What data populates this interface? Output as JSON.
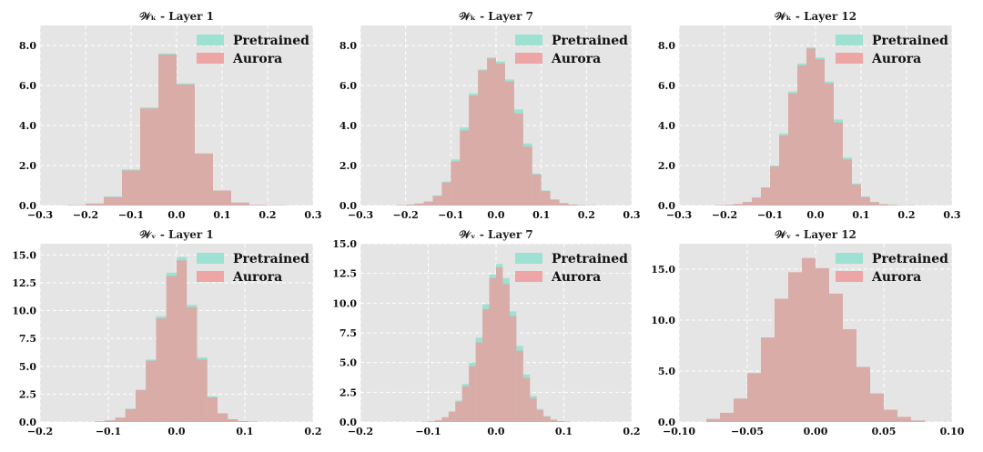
{
  "colors": {
    "pretrained": "#8fe0cf",
    "aurora": "#ee9a9a",
    "plot_bg": "#e5e5e5",
    "grid": "#ffffff"
  },
  "legend": {
    "placement": "top-right",
    "labels": [
      "Pretrained",
      "Aurora"
    ]
  },
  "chart_data": [
    {
      "type": "histogram",
      "title": "𝒲ₖ - Layer 1",
      "xlim": [
        -0.3,
        0.3
      ],
      "ylim": [
        0,
        9
      ],
      "xticks": [
        -0.3,
        -0.2,
        -0.1,
        0.0,
        0.1,
        0.2,
        0.3
      ],
      "xtick_labels": [
        "−0.3",
        "−0.2",
        "−0.1",
        "0.0",
        "0.1",
        "0.2",
        "0.3"
      ],
      "yticks": [
        0,
        2,
        4,
        6,
        8
      ],
      "ytick_labels": [
        "0.0",
        "2.0",
        "4.0",
        "6.0",
        "8.0"
      ],
      "bin_edges": [
        -0.24,
        -0.2,
        -0.16,
        -0.12,
        -0.08,
        -0.04,
        0.0,
        0.04,
        0.08,
        0.12,
        0.16,
        0.2,
        0.24
      ],
      "series": [
        {
          "name": "Pretrained",
          "values": [
            0.02,
            0.1,
            0.45,
            1.8,
            4.9,
            7.6,
            6.1,
            2.6,
            0.75,
            0.15,
            0.03,
            0.01
          ]
        },
        {
          "name": "Aurora",
          "values": [
            0.02,
            0.1,
            0.42,
            1.75,
            4.85,
            7.55,
            6.05,
            2.6,
            0.75,
            0.15,
            0.03,
            0.01
          ]
        }
      ]
    },
    {
      "type": "histogram",
      "title": "𝒲ₖ - Layer 7",
      "xlim": [
        -0.3,
        0.3
      ],
      "ylim": [
        0,
        9
      ],
      "xticks": [
        -0.3,
        -0.2,
        -0.1,
        0.0,
        0.1,
        0.2,
        0.3
      ],
      "xtick_labels": [
        "−0.3",
        "−0.2",
        "−0.1",
        "0.0",
        "0.1",
        "0.2",
        "0.3"
      ],
      "yticks": [
        0,
        2,
        4,
        6,
        8
      ],
      "ytick_labels": [
        "0.0",
        "2.0",
        "4.0",
        "6.0",
        "8.0"
      ],
      "bin_edges": [
        -0.22,
        -0.2,
        -0.18,
        -0.16,
        -0.14,
        -0.12,
        -0.1,
        -0.08,
        -0.06,
        -0.04,
        -0.02,
        0.0,
        0.02,
        0.04,
        0.06,
        0.08,
        0.1,
        0.12,
        0.14,
        0.16,
        0.18,
        0.2,
        0.22
      ],
      "series": [
        {
          "name": "Pretrained",
          "values": [
            0.02,
            0.05,
            0.1,
            0.2,
            0.5,
            1.2,
            2.3,
            3.9,
            5.6,
            6.8,
            7.4,
            7.2,
            6.3,
            4.8,
            3.1,
            1.6,
            0.75,
            0.3,
            0.12,
            0.05,
            0.02,
            0.01
          ]
        },
        {
          "name": "Aurora",
          "values": [
            0.02,
            0.05,
            0.1,
            0.2,
            0.48,
            1.15,
            2.2,
            3.75,
            5.5,
            6.75,
            7.35,
            7.1,
            6.2,
            4.6,
            2.95,
            1.55,
            0.72,
            0.3,
            0.12,
            0.05,
            0.02,
            0.01
          ]
        }
      ]
    },
    {
      "type": "histogram",
      "title": "𝒲ₖ - Layer 12",
      "xlim": [
        -0.3,
        0.3
      ],
      "ylim": [
        0,
        9
      ],
      "xticks": [
        -0.3,
        -0.2,
        -0.1,
        0.0,
        0.1,
        0.2,
        0.3
      ],
      "xtick_labels": [
        "−0.3",
        "−0.2",
        "−0.1",
        "0.0",
        "0.1",
        "0.2",
        "0.3"
      ],
      "yticks": [
        0,
        2,
        4,
        6,
        8
      ],
      "ytick_labels": [
        "0.0",
        "2.0",
        "4.0",
        "6.0",
        "8.0"
      ],
      "bin_edges": [
        -0.22,
        -0.2,
        -0.18,
        -0.16,
        -0.14,
        -0.12,
        -0.1,
        -0.08,
        -0.06,
        -0.04,
        -0.02,
        0.0,
        0.02,
        0.04,
        0.06,
        0.08,
        0.1,
        0.12,
        0.14,
        0.16,
        0.18,
        0.2,
        0.22
      ],
      "series": [
        {
          "name": "Pretrained",
          "values": [
            0.02,
            0.04,
            0.08,
            0.18,
            0.4,
            0.9,
            2.0,
            3.6,
            5.7,
            7.1,
            7.9,
            7.4,
            6.2,
            4.3,
            2.4,
            1.1,
            0.45,
            0.18,
            0.07,
            0.03,
            0.01,
            0.01
          ]
        },
        {
          "name": "Aurora",
          "values": [
            0.02,
            0.04,
            0.08,
            0.18,
            0.4,
            0.9,
            1.95,
            3.5,
            5.6,
            7.0,
            7.85,
            7.3,
            6.1,
            4.15,
            2.3,
            1.05,
            0.42,
            0.17,
            0.07,
            0.03,
            0.01,
            0.01
          ]
        }
      ]
    },
    {
      "type": "histogram",
      "title": "𝒲ᵥ - Layer 1",
      "xlim": [
        -0.2,
        0.2
      ],
      "ylim": [
        0,
        16
      ],
      "xticks": [
        -0.2,
        -0.1,
        0.0,
        0.1,
        0.2
      ],
      "xtick_labels": [
        "−0.2",
        "−0.1",
        "0.0",
        "0.1",
        "0.2"
      ],
      "yticks": [
        0,
        2.5,
        5,
        7.5,
        10,
        12.5,
        15
      ],
      "ytick_labels": [
        "0.0",
        "2.5",
        "5.0",
        "7.5",
        "10.0",
        "12.5",
        "15.0"
      ],
      "bin_edges": [
        -0.12,
        -0.105,
        -0.09,
        -0.075,
        -0.06,
        -0.045,
        -0.03,
        -0.015,
        0.0,
        0.015,
        0.03,
        0.045,
        0.06,
        0.075,
        0.09,
        0.105,
        0.12
      ],
      "series": [
        {
          "name": "Pretrained",
          "values": [
            0.05,
            0.15,
            0.4,
            1.2,
            2.9,
            5.6,
            9.5,
            13.4,
            14.8,
            10.5,
            5.8,
            2.3,
            0.8,
            0.25,
            0.08,
            0.03
          ]
        },
        {
          "name": "Aurora",
          "values": [
            0.05,
            0.15,
            0.4,
            1.15,
            2.85,
            5.5,
            9.3,
            13.1,
            14.5,
            10.3,
            5.6,
            2.2,
            0.75,
            0.25,
            0.08,
            0.03
          ]
        }
      ]
    },
    {
      "type": "histogram",
      "title": "𝒲ᵥ - Layer 7",
      "xlim": [
        -0.2,
        0.2
      ],
      "ylim": [
        0,
        15
      ],
      "xticks": [
        -0.2,
        -0.1,
        0.0,
        0.1,
        0.2
      ],
      "xtick_labels": [
        "−0.2",
        "−0.1",
        "0.0",
        "0.1",
        "0.2"
      ],
      "yticks": [
        0,
        2.5,
        5,
        7.5,
        10,
        12.5,
        15
      ],
      "ytick_labels": [
        "0.0",
        "2.5",
        "5.0",
        "7.5",
        "10.0",
        "12.5",
        "15.0"
      ],
      "bin_edges": [
        -0.11,
        -0.1,
        -0.09,
        -0.08,
        -0.07,
        -0.06,
        -0.05,
        -0.04,
        -0.03,
        -0.02,
        -0.01,
        0.0,
        0.01,
        0.02,
        0.03,
        0.04,
        0.05,
        0.06,
        0.07,
        0.08,
        0.09,
        0.1,
        0.11
      ],
      "series": [
        {
          "name": "Pretrained",
          "values": [
            0.02,
            0.05,
            0.15,
            0.4,
            0.9,
            1.8,
            3.2,
            5.0,
            7.1,
            9.9,
            12.4,
            13.3,
            12.1,
            9.3,
            6.4,
            4.0,
            2.2,
            1.1,
            0.5,
            0.2,
            0.08,
            0.03
          ]
        },
        {
          "name": "Aurora",
          "values": [
            0.02,
            0.05,
            0.15,
            0.4,
            0.85,
            1.7,
            3.0,
            4.7,
            6.7,
            9.5,
            12.1,
            13.0,
            11.6,
            8.9,
            6.0,
            3.7,
            2.0,
            1.0,
            0.45,
            0.2,
            0.08,
            0.03
          ]
        }
      ]
    },
    {
      "type": "histogram",
      "title": "𝒲ᵥ - Layer 12",
      "xlim": [
        -0.1,
        0.1
      ],
      "ylim": [
        0,
        17.5
      ],
      "xticks": [
        -0.1,
        -0.05,
        0.0,
        0.05,
        0.1
      ],
      "xtick_labels": [
        "−0.10",
        "−0.05",
        "0.00",
        "0.05",
        "0.10"
      ],
      "yticks": [
        0,
        5,
        10,
        15
      ],
      "ytick_labels": [
        "0.0",
        "5.0",
        "10.0",
        "15.0"
      ],
      "bin_edges": [
        -0.08,
        -0.07,
        -0.06,
        -0.05,
        -0.04,
        -0.03,
        -0.02,
        -0.01,
        0.0,
        0.01,
        0.02,
        0.03,
        0.04,
        0.05,
        0.06,
        0.07,
        0.08
      ],
      "series": [
        {
          "name": "Pretrained",
          "values": [
            0.3,
            0.9,
            2.3,
            4.8,
            8.3,
            12.1,
            14.7,
            16.1,
            15.1,
            12.6,
            9.1,
            5.4,
            2.8,
            1.2,
            0.5,
            0.15
          ]
        },
        {
          "name": "Aurora",
          "values": [
            0.3,
            0.9,
            2.3,
            4.8,
            8.3,
            12.1,
            14.7,
            16.1,
            15.1,
            12.6,
            9.1,
            5.4,
            2.8,
            1.2,
            0.5,
            0.15
          ]
        }
      ]
    }
  ]
}
